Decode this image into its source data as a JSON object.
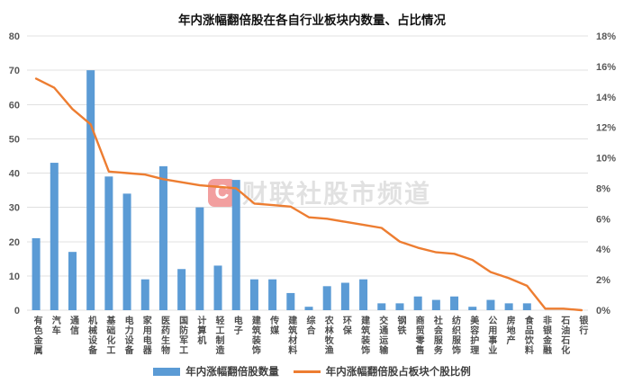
{
  "title": "年内涨幅翻倍股在各自行业板块内数量、占比情况",
  "watermark": {
    "logo_letter": "C",
    "text": "财联社股市频道"
  },
  "legend": [
    {
      "type": "bar",
      "label": "年内涨幅翻倍股数量",
      "color": "#5B9BD5"
    },
    {
      "type": "line",
      "label": "年内涨幅翻倍股占板块个股比例",
      "color": "#ED7D31"
    }
  ],
  "colors": {
    "bar": "#5B9BD5",
    "line": "#ED7D31",
    "gridline": "#E0E0E0",
    "axis_text": "#595959",
    "title_text": "#111111"
  },
  "chart_data": {
    "type": "bar",
    "subtype": "bar-line-combo",
    "title": "年内涨幅翻倍股在各自行业板块内数量、占比情况",
    "grid": true,
    "legend_position": "bottom",
    "categories": [
      "有色金属",
      "汽车",
      "通信",
      "机械设备",
      "基础化工",
      "电力设备",
      "家用电器",
      "医药生物",
      "国防军工",
      "计算机",
      "轻工制造",
      "电子",
      "建筑装饰",
      "传媒",
      "建筑材料",
      "综合",
      "农林牧渔",
      "环保",
      "建筑装饰",
      "交通运输",
      "钢铁",
      "商贸零售",
      "社会服务",
      "纺织服饰",
      "美容护理",
      "公用事业",
      "房地产",
      "食品饮料",
      "非银金融",
      "石油石化",
      "银行"
    ],
    "series": [
      {
        "name": "年内涨幅翻倍股数量",
        "type": "bar",
        "axis": "left",
        "color": "#5B9BD5",
        "values": [
          21,
          43,
          17,
          70,
          39,
          34,
          9,
          42,
          12,
          30,
          13,
          38,
          9,
          9,
          5,
          1,
          7,
          8,
          9,
          2,
          2,
          4,
          3,
          4,
          1,
          3,
          2,
          2,
          0,
          0,
          0
        ]
      },
      {
        "name": "年内涨幅翻倍股占板块个股比例",
        "type": "line",
        "axis": "right",
        "color": "#ED7D31",
        "unit": "%",
        "values": [
          15.2,
          14.6,
          13.2,
          12.2,
          9.1,
          9.0,
          8.9,
          8.6,
          8.4,
          8.2,
          8.1,
          8.0,
          7.0,
          6.9,
          6.8,
          6.1,
          6.0,
          5.8,
          5.6,
          5.4,
          4.5,
          4.1,
          3.8,
          3.7,
          3.3,
          2.5,
          2.1,
          1.6,
          0.1,
          0.1,
          0.0
        ]
      }
    ],
    "left_axis": {
      "min": 0,
      "max": 80,
      "step": 10,
      "ticks": [
        "0",
        "10",
        "20",
        "30",
        "40",
        "50",
        "60",
        "70",
        "80"
      ]
    },
    "right_axis": {
      "min": 0,
      "max": 18,
      "step": 2,
      "ticks": [
        "0%",
        "2%",
        "4%",
        "6%",
        "8%",
        "10%",
        "12%",
        "14%",
        "16%",
        "18%"
      ]
    }
  }
}
